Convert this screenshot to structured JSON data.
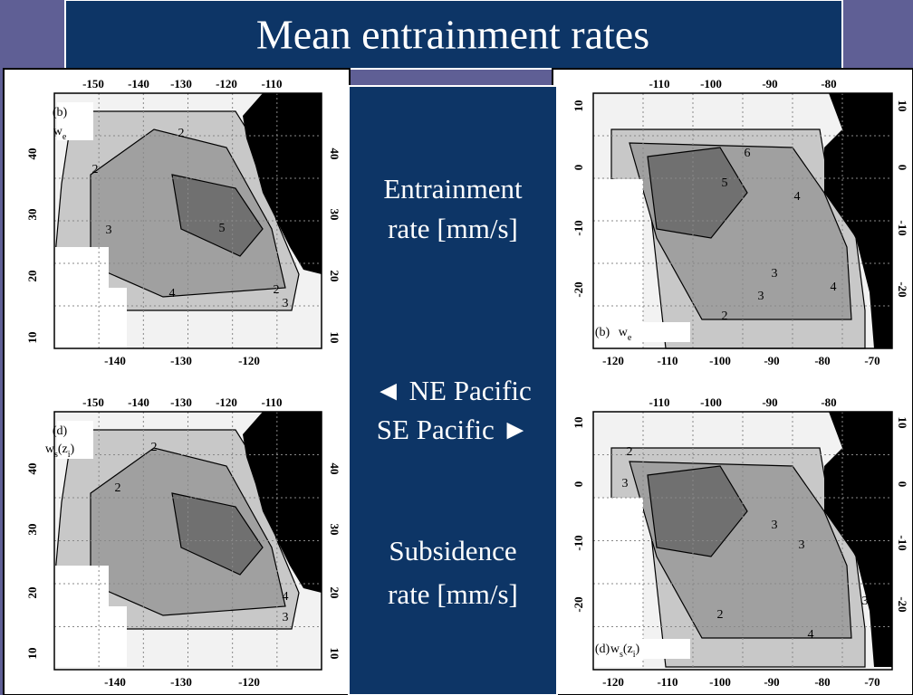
{
  "title": "Mean entrainment rates",
  "center": {
    "top": [
      "Entrainment",
      "rate [mm/s]"
    ],
    "middle": [
      "◄ NE Pacific",
      "SE Pacific ►"
    ],
    "bottom": [
      "Subsidence",
      "rate [mm/s]"
    ]
  },
  "panels": [
    {
      "label": "(b)",
      "symbol": [
        {
          "text": "w"
        },
        {
          "text": "e",
          "sub": true
        }
      ],
      "top_ticks": [
        -150,
        -140,
        -130,
        -120,
        -110
      ],
      "bottom_ticks": [
        -140,
        -130,
        -120
      ],
      "left_ticks": [
        40,
        30,
        20,
        10
      ],
      "right_ticks": [
        40,
        30,
        20,
        10
      ],
      "contour_labels": [
        2,
        2,
        3,
        5,
        4,
        2,
        3
      ]
    },
    {
      "label": "(d)",
      "symbol": [
        {
          "text": "w"
        },
        {
          "text": "s",
          "sub": true
        },
        {
          "text": "(z"
        },
        {
          "text": "i",
          "sub": true
        },
        {
          "text": ")"
        }
      ],
      "top_ticks": [
        -150,
        -140,
        -130,
        -120,
        -110
      ],
      "bottom_ticks": [
        -140,
        -130,
        -120
      ],
      "left_ticks": [
        40,
        30,
        20,
        10
      ],
      "right_ticks": [
        40,
        30,
        20,
        10
      ],
      "contour_labels": [
        2,
        2,
        4,
        3
      ]
    },
    {
      "label": "(b)",
      "symbol": [
        {
          "text": "w"
        },
        {
          "text": "e",
          "sub": true
        }
      ],
      "top_ticks": [
        -110,
        -100,
        -90,
        -80
      ],
      "bottom_ticks": [
        -120,
        -110,
        -100,
        -90,
        -80,
        -70
      ],
      "left_ticks": [
        10,
        0,
        -10,
        -20
      ],
      "right_ticks": [
        10,
        0,
        -10,
        -20
      ],
      "contour_labels": [
        6,
        5,
        4,
        3,
        3,
        2,
        4
      ]
    },
    {
      "label": "(d)",
      "symbol": [
        {
          "text": "w"
        },
        {
          "text": "s",
          "sub": true
        },
        {
          "text": "(z"
        },
        {
          "text": "i",
          "sub": true
        },
        {
          "text": ")"
        }
      ],
      "top_ticks": [
        -110,
        -100,
        -90,
        -80
      ],
      "bottom_ticks": [
        -120,
        -110,
        -100,
        -90,
        -80,
        -70
      ],
      "left_ticks": [
        10,
        0,
        -10,
        -20
      ],
      "right_ticks": [
        10,
        0,
        -10,
        -20
      ],
      "contour_labels": [
        2,
        3,
        3,
        3,
        2,
        3,
        4
      ]
    }
  ]
}
